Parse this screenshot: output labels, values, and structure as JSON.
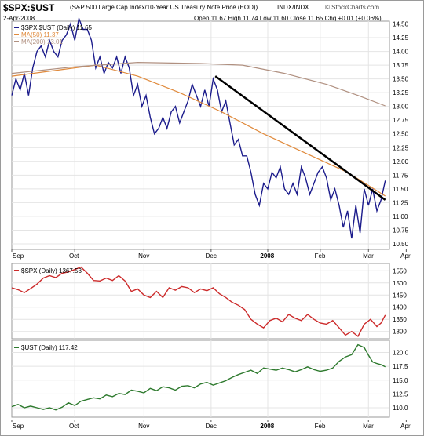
{
  "header": {
    "symbol": "$SPX:$UST",
    "description": "(S&P 500 Large Cap Index/10-Year US Treasury Note Price (EOD))",
    "exchange": "INDX/INDX",
    "credit": "© StockCharts.com",
    "date": "2-Apr-2008",
    "ohlc": "Open 11.67  High 11.74  Low 11.60  Close 11.65  Chg +0.01 (+0.06%)"
  },
  "x_axis": {
    "labels": [
      "Sep",
      "Oct",
      "Nov",
      "Dec",
      "2008",
      "Feb",
      "Mar",
      "Apr"
    ]
  },
  "colors": {
    "ratio": "#1c1c8c",
    "ma50": "#e08a3c",
    "ma200": "#b09080",
    "trendline": "#000000",
    "spx": "#cc2a2a",
    "ust": "#2e7a2e",
    "grid": "#e4e4e4"
  },
  "chart_data": [
    {
      "type": "line",
      "name": "ratio-panel",
      "legend_placement": "top-left",
      "grid": true,
      "ylim": [
        10.4,
        14.55
      ],
      "yticks": [
        "14.50",
        "14.25",
        "14.00",
        "13.75",
        "13.50",
        "13.25",
        "13.00",
        "12.75",
        "12.50",
        "12.25",
        "12.00",
        "11.75",
        "11.50",
        "11.25",
        "11.00",
        "10.75",
        "10.50"
      ],
      "series": [
        {
          "name": "$SPX:$UST (Daily) 11.65",
          "color": "#1c1c8c",
          "points": [
            [
              0,
              13.2
            ],
            [
              2,
              13.5
            ],
            [
              4,
              13.3
            ],
            [
              6,
              13.6
            ],
            [
              8,
              13.2
            ],
            [
              10,
              13.7
            ],
            [
              12,
              14.0
            ],
            [
              14,
              14.1
            ],
            [
              16,
              13.9
            ],
            [
              18,
              14.2
            ],
            [
              20,
              14.0
            ],
            [
              22,
              13.9
            ],
            [
              24,
              14.2
            ],
            [
              26,
              14.3
            ],
            [
              28,
              14.5
            ],
            [
              30,
              14.2
            ],
            [
              32,
              14.6
            ],
            [
              34,
              14.4
            ],
            [
              36,
              14.4
            ],
            [
              38,
              14.2
            ],
            [
              40,
              13.7
            ],
            [
              42,
              13.9
            ],
            [
              44,
              13.6
            ],
            [
              46,
              13.8
            ],
            [
              48,
              13.7
            ],
            [
              50,
              13.9
            ],
            [
              52,
              13.6
            ],
            [
              54,
              13.9
            ],
            [
              56,
              13.7
            ],
            [
              58,
              13.2
            ],
            [
              60,
              13.4
            ],
            [
              62,
              13.0
            ],
            [
              64,
              13.2
            ],
            [
              66,
              12.8
            ],
            [
              68,
              12.5
            ],
            [
              70,
              12.6
            ],
            [
              72,
              12.8
            ],
            [
              74,
              12.6
            ],
            [
              76,
              12.9
            ],
            [
              78,
              13.0
            ],
            [
              80,
              12.7
            ],
            [
              82,
              12.9
            ],
            [
              84,
              13.1
            ],
            [
              86,
              13.4
            ],
            [
              88,
              13.2
            ],
            [
              90,
              13.0
            ],
            [
              92,
              13.3
            ],
            [
              94,
              13.0
            ],
            [
              96,
              13.5
            ],
            [
              98,
              13.3
            ],
            [
              100,
              12.9
            ],
            [
              102,
              13.1
            ],
            [
              104,
              12.7
            ],
            [
              106,
              12.3
            ],
            [
              108,
              12.4
            ],
            [
              110,
              12.1
            ],
            [
              112,
              12.1
            ],
            [
              114,
              11.8
            ],
            [
              116,
              11.4
            ],
            [
              118,
              11.2
            ],
            [
              120,
              11.6
            ],
            [
              122,
              11.5
            ],
            [
              124,
              11.8
            ],
            [
              126,
              11.7
            ],
            [
              128,
              11.9
            ],
            [
              130,
              11.5
            ],
            [
              132,
              11.4
            ],
            [
              134,
              11.6
            ],
            [
              136,
              11.4
            ],
            [
              138,
              11.9
            ],
            [
              140,
              11.7
            ],
            [
              142,
              11.4
            ],
            [
              144,
              11.6
            ],
            [
              146,
              11.8
            ],
            [
              148,
              11.9
            ],
            [
              150,
              11.7
            ],
            [
              152,
              11.3
            ],
            [
              154,
              11.5
            ],
            [
              156,
              11.2
            ],
            [
              158,
              10.8
            ],
            [
              160,
              11.1
            ],
            [
              162,
              10.6
            ],
            [
              164,
              11.2
            ],
            [
              166,
              10.7
            ],
            [
              168,
              11.5
            ],
            [
              170,
              11.2
            ],
            [
              172,
              11.5
            ],
            [
              174,
              11.1
            ],
            [
              176,
              11.3
            ],
            [
              178,
              11.65
            ]
          ]
        },
        {
          "name": "MA(50) 11.37",
          "color": "#e08a3c",
          "points": [
            [
              0,
              13.55
            ],
            [
              20,
              13.65
            ],
            [
              40,
              13.75
            ],
            [
              60,
              13.55
            ],
            [
              80,
              13.25
            ],
            [
              100,
              12.9
            ],
            [
              120,
              12.5
            ],
            [
              140,
              12.15
            ],
            [
              160,
              11.8
            ],
            [
              178,
              11.37
            ]
          ]
        },
        {
          "name": "MA(200) 13.01",
          "color": "#b09080",
          "points": [
            [
              0,
              13.6
            ],
            [
              30,
              13.72
            ],
            [
              60,
              13.8
            ],
            [
              90,
              13.78
            ],
            [
              110,
              13.75
            ],
            [
              130,
              13.6
            ],
            [
              150,
              13.4
            ],
            [
              165,
              13.2
            ],
            [
              178,
              13.01
            ]
          ]
        }
      ],
      "trendline": [
        [
          97,
          13.55
        ],
        [
          178,
          11.3
        ]
      ]
    },
    {
      "type": "line",
      "name": "spx-panel",
      "legend_placement": "top-left",
      "grid": true,
      "ylim": [
        1270,
        1580
      ],
      "yticks": [
        "1550",
        "1500",
        "1450",
        "1400",
        "1350",
        "1300"
      ],
      "series": [
        {
          "name": "$SPX (Daily) 1367.53",
          "color": "#cc2a2a",
          "points": [
            [
              0,
              1480
            ],
            [
              3,
              1472
            ],
            [
              6,
              1460
            ],
            [
              9,
              1477
            ],
            [
              12,
              1495
            ],
            [
              15,
              1520
            ],
            [
              18,
              1530
            ],
            [
              21,
              1522
            ],
            [
              24,
              1540
            ],
            [
              27,
              1545
            ],
            [
              30,
              1555
            ],
            [
              33,
              1565
            ],
            [
              36,
              1540
            ],
            [
              39,
              1510
            ],
            [
              42,
              1508
            ],
            [
              45,
              1520
            ],
            [
              48,
              1510
            ],
            [
              51,
              1530
            ],
            [
              54,
              1508
            ],
            [
              57,
              1465
            ],
            [
              60,
              1475
            ],
            [
              63,
              1450
            ],
            [
              66,
              1440
            ],
            [
              69,
              1465
            ],
            [
              72,
              1440
            ],
            [
              75,
              1480
            ],
            [
              78,
              1470
            ],
            [
              81,
              1485
            ],
            [
              84,
              1480
            ],
            [
              87,
              1460
            ],
            [
              90,
              1475
            ],
            [
              93,
              1468
            ],
            [
              96,
              1480
            ],
            [
              99,
              1455
            ],
            [
              102,
              1440
            ],
            [
              105,
              1420
            ],
            [
              108,
              1408
            ],
            [
              111,
              1390
            ],
            [
              114,
              1350
            ],
            [
              117,
              1330
            ],
            [
              120,
              1315
            ],
            [
              123,
              1345
            ],
            [
              126,
              1355
            ],
            [
              129,
              1340
            ],
            [
              132,
              1370
            ],
            [
              135,
              1355
            ],
            [
              138,
              1345
            ],
            [
              141,
              1370
            ],
            [
              144,
              1350
            ],
            [
              147,
              1335
            ],
            [
              150,
              1330
            ],
            [
              153,
              1345
            ],
            [
              156,
              1315
            ],
            [
              159,
              1285
            ],
            [
              162,
              1300
            ],
            [
              165,
              1280
            ],
            [
              168,
              1330
            ],
            [
              171,
              1350
            ],
            [
              174,
              1320
            ],
            [
              176,
              1335
            ],
            [
              178,
              1367.53
            ]
          ]
        }
      ]
    },
    {
      "type": "line",
      "name": "ust-panel",
      "legend_placement": "top-left",
      "grid": true,
      "ylim": [
        108.3,
        122.2
      ],
      "yticks": [
        "120.0",
        "117.5",
        "115.0",
        "112.5",
        "110.0"
      ],
      "series": [
        {
          "name": "$UST (Daily) 117.42",
          "color": "#2e7a2e",
          "points": [
            [
              0,
              110.2
            ],
            [
              3,
              110.6
            ],
            [
              6,
              110.0
            ],
            [
              9,
              110.3
            ],
            [
              12,
              110.0
            ],
            [
              15,
              109.7
            ],
            [
              18,
              110.0
            ],
            [
              21,
              109.6
            ],
            [
              24,
              110.1
            ],
            [
              27,
              110.9
            ],
            [
              30,
              110.4
            ],
            [
              33,
              111.2
            ],
            [
              36,
              111.5
            ],
            [
              39,
              111.8
            ],
            [
              42,
              111.6
            ],
            [
              45,
              112.3
            ],
            [
              48,
              112.0
            ],
            [
              51,
              112.6
            ],
            [
              54,
              112.4
            ],
            [
              57,
              113.2
            ],
            [
              60,
              113.0
            ],
            [
              63,
              112.7
            ],
            [
              66,
              113.5
            ],
            [
              69,
              113.1
            ],
            [
              72,
              113.8
            ],
            [
              75,
              113.6
            ],
            [
              78,
              113.2
            ],
            [
              81,
              113.9
            ],
            [
              84,
              114.0
            ],
            [
              87,
              113.6
            ],
            [
              90,
              114.3
            ],
            [
              93,
              114.6
            ],
            [
              96,
              114.1
            ],
            [
              99,
              114.5
            ],
            [
              102,
              114.9
            ],
            [
              105,
              115.5
            ],
            [
              108,
              116.0
            ],
            [
              111,
              116.4
            ],
            [
              114,
              116.8
            ],
            [
              117,
              116.2
            ],
            [
              120,
              117.2
            ],
            [
              123,
              117.0
            ],
            [
              126,
              116.8
            ],
            [
              129,
              117.2
            ],
            [
              132,
              116.9
            ],
            [
              135,
              116.5
            ],
            [
              138,
              116.9
            ],
            [
              141,
              117.4
            ],
            [
              144,
              116.9
            ],
            [
              147,
              116.6
            ],
            [
              150,
              116.8
            ],
            [
              153,
              117.2
            ],
            [
              156,
              118.4
            ],
            [
              159,
              119.2
            ],
            [
              162,
              119.6
            ],
            [
              165,
              121.4
            ],
            [
              168,
              120.9
            ],
            [
              170,
              119.5
            ],
            [
              172,
              118.3
            ],
            [
              174,
              118.0
            ],
            [
              176,
              117.8
            ],
            [
              178,
              117.42
            ]
          ]
        }
      ]
    }
  ]
}
